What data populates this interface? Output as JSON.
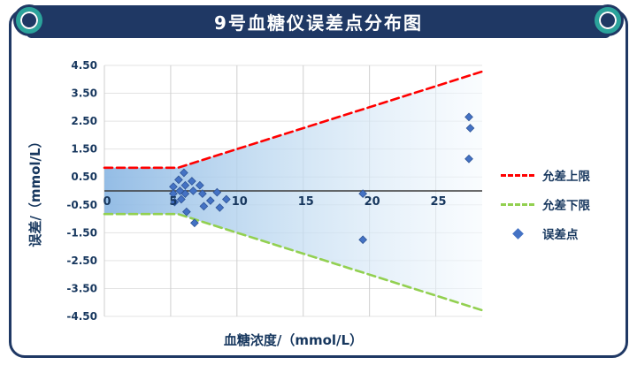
{
  "header": {
    "title": "9号血糖仪误差点分布图"
  },
  "colors": {
    "banner": "#1F3864",
    "ornament_ring": "#2BA39B",
    "axis_text": "#17375E",
    "upper_limit": "#FF0000",
    "lower_limit": "#92D050",
    "points": "#4472C4",
    "band_gradient_start": "#8EB9E4",
    "band_gradient_end": "#F5FAFE"
  },
  "chart_data": {
    "type": "scatter",
    "title": "9号血糖仪误差点分布图",
    "xlabel": "血糖浓度/（mmol/L）",
    "ylabel": "误差/（mmol/L）",
    "xlim": [
      0,
      28.5
    ],
    "ylim": [
      -4.5,
      4.5
    ],
    "grid": true,
    "legend_position": "right",
    "x_tick_values": [
      0,
      5,
      10,
      15,
      20,
      25
    ],
    "x_tick_labels": [
      "0",
      "5",
      "10",
      "15",
      "20",
      "25"
    ],
    "y_tick_values": [
      4.5,
      3.5,
      2.5,
      1.5,
      0.5,
      -0.5,
      -1.5,
      -2.5,
      -3.5,
      -4.5
    ],
    "y_tick_labels": [
      "4.50",
      "3.50",
      "2.50",
      "1.50",
      "0.50",
      "-0.50",
      "-1.50",
      "-2.50",
      "-3.50",
      "-4.50"
    ],
    "zero_line": true,
    "band_between": [
      0,
      1
    ],
    "series": [
      {
        "name": "允差上限",
        "type": "line",
        "style": "dashed",
        "color": "#FF0000",
        "points": [
          [
            0,
            0.83
          ],
          [
            5.55,
            0.83
          ],
          [
            28.5,
            4.28
          ]
        ]
      },
      {
        "name": "允差下限",
        "type": "line",
        "style": "dashed",
        "color": "#92D050",
        "points": [
          [
            0,
            -0.83
          ],
          [
            5.55,
            -0.83
          ],
          [
            28.5,
            -4.28
          ]
        ]
      },
      {
        "name": "误差点",
        "type": "scatter",
        "marker": "diamond",
        "color": "#4472C4",
        "points": [
          [
            5.2,
            0.15
          ],
          [
            5.2,
            -0.1
          ],
          [
            5.3,
            -0.4
          ],
          [
            5.6,
            0.4
          ],
          [
            5.7,
            0.0
          ],
          [
            5.8,
            -0.3
          ],
          [
            6.0,
            0.65
          ],
          [
            6.1,
            0.2
          ],
          [
            6.1,
            -0.1
          ],
          [
            6.2,
            -0.75
          ],
          [
            6.6,
            0.35
          ],
          [
            6.7,
            0.0
          ],
          [
            6.8,
            -1.15
          ],
          [
            7.2,
            0.2
          ],
          [
            7.4,
            -0.1
          ],
          [
            7.5,
            -0.55
          ],
          [
            8.0,
            -0.35
          ],
          [
            8.5,
            -0.05
          ],
          [
            8.7,
            -0.6
          ],
          [
            9.2,
            -0.3
          ],
          [
            19.5,
            -0.1
          ],
          [
            19.5,
            -1.75
          ],
          [
            27.5,
            2.65
          ],
          [
            27.6,
            2.25
          ],
          [
            27.5,
            1.15
          ]
        ]
      }
    ]
  }
}
